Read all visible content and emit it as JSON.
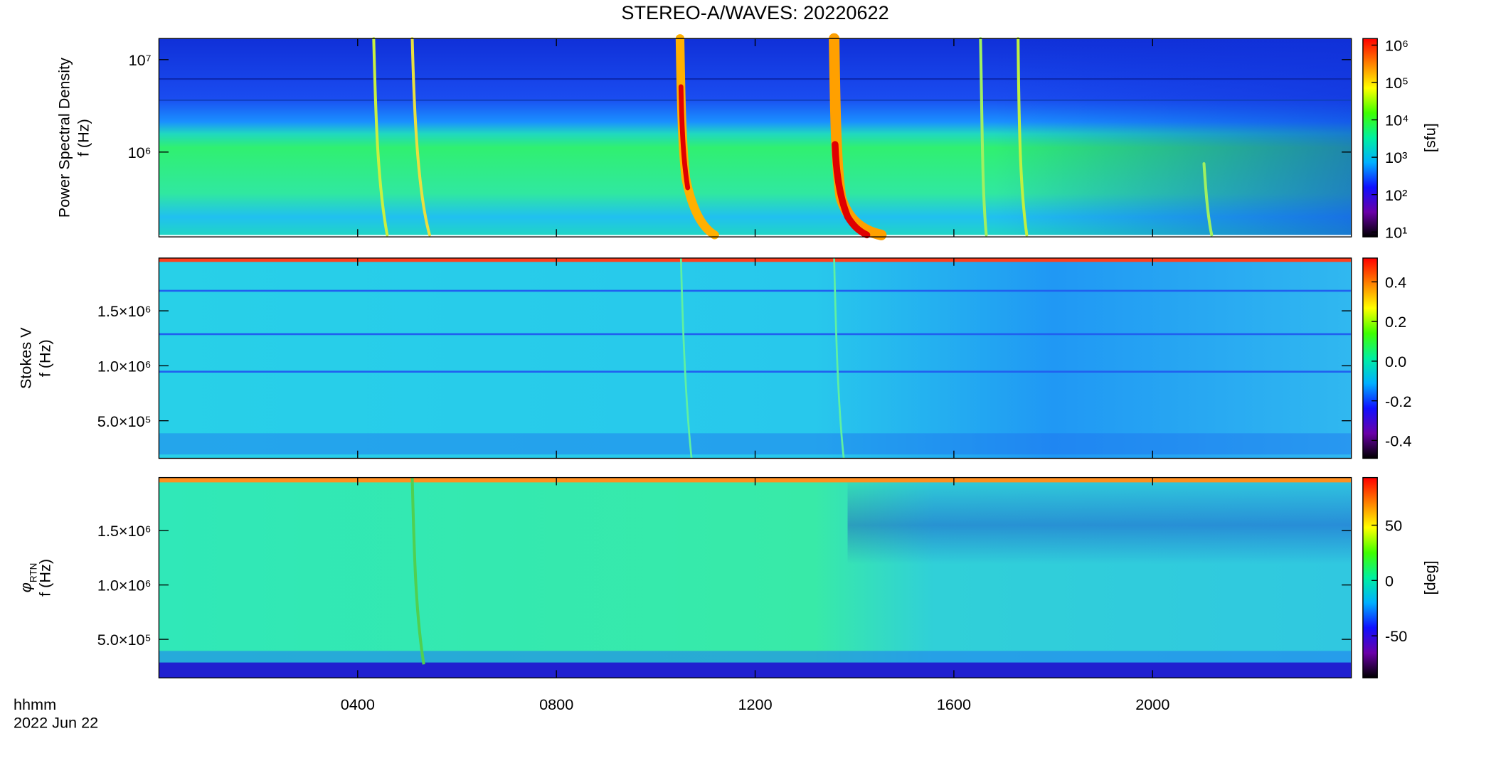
{
  "title": "STEREO-A/WAVES: 20220622",
  "time_axis": {
    "label": "hhmm",
    "date": "2022 Jun 22",
    "xlim": [
      0,
      24
    ],
    "xticks": [
      {
        "value": 4,
        "label": "0400"
      },
      {
        "value": 8,
        "label": "0800"
      },
      {
        "value": 12,
        "label": "1200"
      },
      {
        "value": 16,
        "label": "1600"
      },
      {
        "value": 20,
        "label": "2000"
      }
    ]
  },
  "colormap": [
    "#000000",
    "#6a00a8",
    "#1010ff",
    "#00b0ff",
    "#00f0a0",
    "#40ff00",
    "#ffff00",
    "#ff8000",
    "#ff0000"
  ],
  "chart_data": [
    {
      "type": "spectrogram",
      "ylabel": [
        "Power Spectral Density",
        "f (Hz)"
      ],
      "log_y": true,
      "ylim": [
        121000,
        16900000
      ],
      "yticks": [
        {
          "value": 1000000,
          "label": "10⁶"
        },
        {
          "value": 10000000,
          "label": "10⁷"
        }
      ],
      "log_c": true,
      "clim": [
        7.4,
        1500000
      ],
      "cticks": [
        {
          "value": 10,
          "label": "10¹"
        },
        {
          "value": 100,
          "label": "10²"
        },
        {
          "value": 1000,
          "label": "10³"
        },
        {
          "value": 10000,
          "label": "10⁴"
        },
        {
          "value": 100000,
          "label": "10⁵"
        },
        {
          "value": 1000000,
          "label": "10⁶"
        }
      ],
      "colorbar_label": "[sfu]"
    },
    {
      "type": "spectrogram",
      "ylabel": [
        "Stokes V",
        "f (Hz)"
      ],
      "log_y": false,
      "ylim": [
        158000,
        1980000
      ],
      "yticks": [
        {
          "value": 500000,
          "label": "5.0×10⁵"
        },
        {
          "value": 1000000,
          "label": "1.0×10⁶"
        },
        {
          "value": 1500000,
          "label": "1.5×10⁶"
        }
      ],
      "log_c": false,
      "clim": [
        -0.49,
        0.52
      ],
      "cticks": [
        -0.4,
        -0.2,
        {
          "value": 0,
          "label": "0.0"
        },
        0.2,
        0.4
      ]
    },
    {
      "type": "spectrogram",
      "ylabel": [
        {
          "text": "φ",
          "sub": "RTN"
        },
        "f (Hz)"
      ],
      "log_y": false,
      "ylim": [
        146000,
        1987000
      ],
      "yticks": [
        {
          "value": 500000,
          "label": "5.0×10⁵"
        },
        {
          "value": 1000000,
          "label": "1.0×10⁶"
        },
        {
          "value": 1500000,
          "label": "1.5×10⁶"
        }
      ],
      "log_c": false,
      "clim": [
        -88,
        93
      ],
      "cticks": [
        -50,
        0,
        50
      ],
      "colorbar_label": "[deg]"
    }
  ]
}
